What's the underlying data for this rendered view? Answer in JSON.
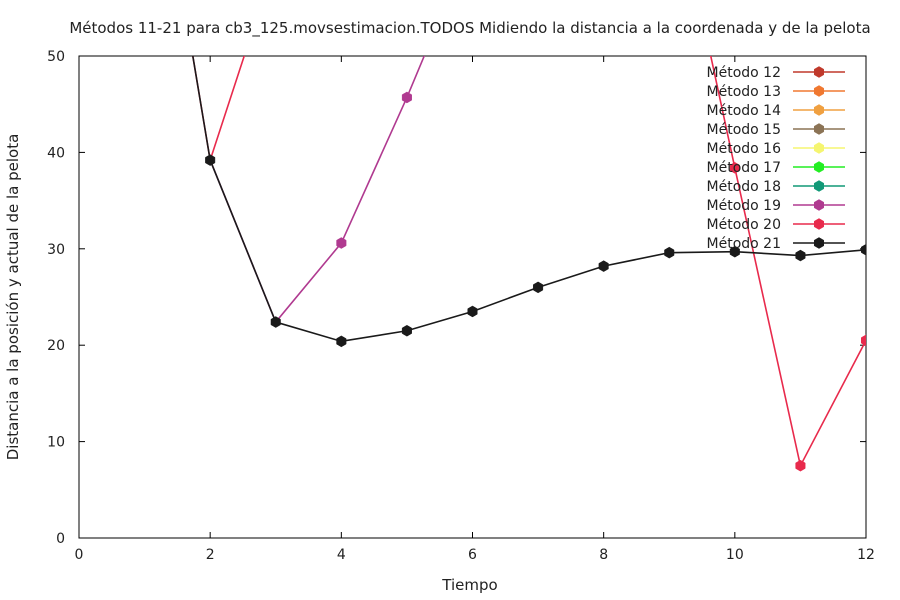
{
  "chart_data": {
    "type": "line",
    "title": "Métodos 11-21 para cb3_125.movsestimacion.TODOS Midiendo la distancia a la coordenada y de la pelota",
    "xlabel": "Tiempo",
    "ylabel": "Distancia a la posición y actual de la pelota",
    "xlim": [
      0,
      12
    ],
    "ylim": [
      0,
      50
    ],
    "xticks": [
      "0",
      "2",
      "4",
      "6",
      "8",
      "10",
      "12"
    ],
    "yticks": [
      "0",
      "10",
      "20",
      "30",
      "40",
      "50"
    ],
    "grid": false,
    "legend_position": "top-right",
    "series": [
      {
        "name": "Método 12",
        "color": "#c0392b",
        "x": [],
        "y": []
      },
      {
        "name": "Método 13",
        "color": "#f07830",
        "x": [],
        "y": []
      },
      {
        "name": "Método 14",
        "color": "#f0a040",
        "x": [],
        "y": []
      },
      {
        "name": "Método 15",
        "color": "#8b7355",
        "x": [],
        "y": []
      },
      {
        "name": "Método 16",
        "color": "#f5f570",
        "x": [],
        "y": []
      },
      {
        "name": "Método 17",
        "color": "#22ee22",
        "x": [],
        "y": []
      },
      {
        "name": "Método 18",
        "color": "#119977",
        "x": [],
        "y": []
      },
      {
        "name": "Método 19",
        "color": "#b03a90",
        "x": [
          2,
          3,
          4,
          5,
          6
        ],
        "y": [
          39.2,
          22.4,
          30.6,
          45.7,
          62
        ]
      },
      {
        "name": "Método 20",
        "color": "#e82a4c",
        "x": [
          1,
          2,
          3,
          9,
          10,
          11,
          12
        ],
        "y": [
          80,
          39.2,
          60,
          70,
          38.4,
          7.5,
          20.5
        ]
      },
      {
        "name": "Método 21",
        "color": "#1a1a1a",
        "x": [
          1,
          2,
          3,
          4,
          5,
          6,
          7,
          8,
          9,
          10,
          11,
          12
        ],
        "y": [
          80,
          39.2,
          22.4,
          20.4,
          21.5,
          23.5,
          26,
          28.2,
          29.6,
          29.7,
          29.3,
          29.9
        ]
      }
    ],
    "marker_points": {
      "Método 19": [
        [
          4,
          30.6
        ],
        [
          5,
          45.7
        ]
      ],
      "Método 20": [
        [
          10,
          38.4
        ],
        [
          11,
          7.5
        ],
        [
          12,
          20.5
        ]
      ],
      "Método 21": [
        [
          2,
          39.2
        ],
        [
          3,
          22.4
        ],
        [
          4,
          20.4
        ],
        [
          5,
          21.5
        ],
        [
          6,
          23.5
        ],
        [
          7,
          26
        ],
        [
          8,
          28.2
        ],
        [
          9,
          29.6
        ],
        [
          10,
          29.7
        ],
        [
          11,
          29.3
        ],
        [
          12,
          29.9
        ]
      ]
    }
  }
}
